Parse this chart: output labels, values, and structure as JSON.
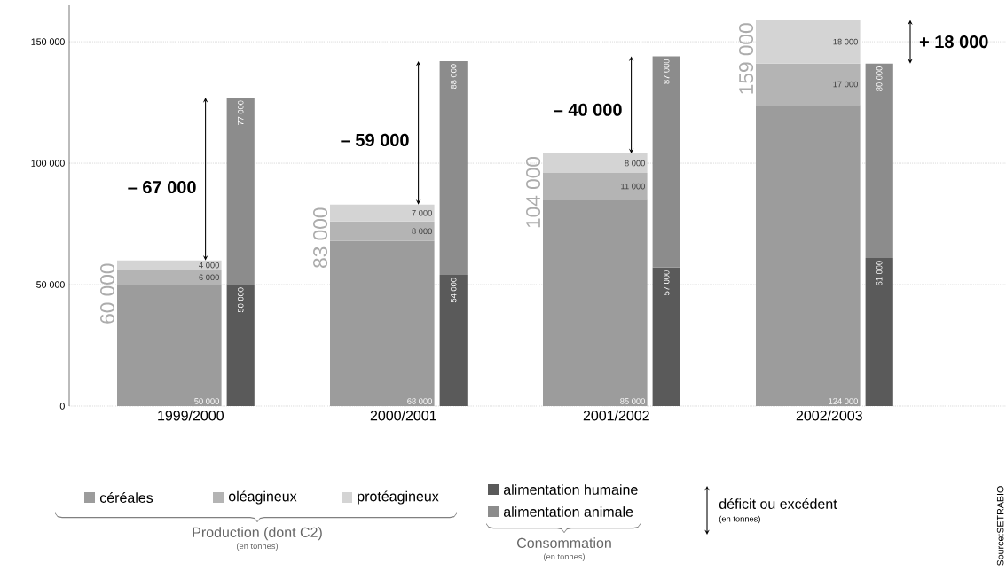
{
  "chart_data": [
    {
      "type": "bar",
      "stacked": true,
      "categories": [
        "1999/2000",
        "2000/2001",
        "2001/2002",
        "2002/2003"
      ],
      "series": [
        {
          "name": "céréales",
          "color": "#9c9c9c",
          "values": [
            50000,
            68000,
            85000,
            124000
          ],
          "value_labels": [
            "50 000",
            "68 000",
            "85 000",
            "124 000"
          ]
        },
        {
          "name": "oléagineux",
          "color": "#b4b4b4",
          "values": [
            6000,
            8000,
            11000,
            17000
          ],
          "value_labels": [
            "6 000",
            "8 000",
            "11 000",
            "17 000"
          ]
        },
        {
          "name": "protéagineux",
          "color": "#d4d4d4",
          "values": [
            4000,
            7000,
            8000,
            18000
          ],
          "value_labels": [
            "4 000",
            "7 000",
            "8 000",
            "18 000"
          ]
        }
      ],
      "totals": [
        "60 000",
        "83 000",
        "104 000",
        "159 000"
      ],
      "ylim": [
        0,
        165000
      ],
      "yticks": [
        0,
        {
          "value": 50000,
          "label": "50 000"
        },
        {
          "value": 100000,
          "label": "100 000"
        },
        {
          "value": 150000,
          "label": "150 000"
        }
      ],
      "grid": "y",
      "legend": "bottom",
      "annotations": [
        "– 67 000",
        "– 59 000",
        "– 40 000",
        "+ 18 000",
        "Production (dont C2)",
        "(en tonnes)"
      ]
    },
    {
      "type": "bar",
      "stacked": true,
      "categories": [
        null,
        null,
        null,
        null
      ],
      "series": [
        {
          "name": "alimentation humaine",
          "color": "#5a5a5a",
          "values": [
            50000,
            54000,
            57000,
            61000
          ],
          "value_labels": [
            "50 000",
            "54 000",
            "57 000",
            "61 000"
          ]
        },
        {
          "name": "alimentation animale",
          "color": "#8c8c8c",
          "values": [
            77000,
            88000,
            87000,
            80000
          ],
          "value_labels": [
            "77 000",
            "88 000",
            "87 000",
            "80 000"
          ]
        }
      ],
      "legend": "bottom",
      "annotations": [
        "Consommation",
        "(en tonnes)",
        "déficit ou excédent",
        "(en tonnes)",
        "Source:SETRABIO"
      ]
    }
  ]
}
